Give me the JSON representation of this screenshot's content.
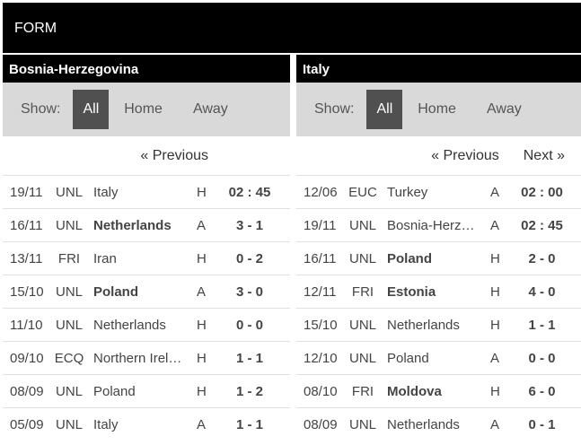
{
  "header": {
    "title": "FORM"
  },
  "filter": {
    "show_label": "Show:",
    "all": "All",
    "home": "Home",
    "away": "Away"
  },
  "left": {
    "team": "Bosnia-Herzegovina",
    "pager": {
      "previous": "« Previous"
    },
    "matches": [
      {
        "date": "19/11",
        "comp": "UNL",
        "opponent": "Italy",
        "bold": false,
        "ha": "H",
        "score": "02 : 45"
      },
      {
        "date": "16/11",
        "comp": "UNL",
        "opponent": "Netherlands",
        "bold": true,
        "ha": "A",
        "score": "3 - 1"
      },
      {
        "date": "13/11",
        "comp": "FRI",
        "opponent": "Iran",
        "bold": false,
        "ha": "H",
        "score": "0 - 2"
      },
      {
        "date": "15/10",
        "comp": "UNL",
        "opponent": "Poland",
        "bold": true,
        "ha": "A",
        "score": "3 - 0"
      },
      {
        "date": "11/10",
        "comp": "UNL",
        "opponent": "Netherlands",
        "bold": false,
        "ha": "H",
        "score": "0 - 0"
      },
      {
        "date": "09/10",
        "comp": "ECQ",
        "opponent": "Northern Irel…",
        "bold": false,
        "ha": "H",
        "score": "1 - 1"
      },
      {
        "date": "08/09",
        "comp": "UNL",
        "opponent": "Poland",
        "bold": false,
        "ha": "H",
        "score": "1 - 2"
      },
      {
        "date": "05/09",
        "comp": "UNL",
        "opponent": "Italy",
        "bold": false,
        "ha": "A",
        "score": "1 - 1"
      }
    ]
  },
  "right": {
    "team": "Italy",
    "pager": {
      "previous": "« Previous",
      "next": "Next »"
    },
    "matches": [
      {
        "date": "12/06",
        "comp": "EUC",
        "opponent": "Turkey",
        "bold": false,
        "ha": "A",
        "score": "02 : 00"
      },
      {
        "date": "19/11",
        "comp": "UNL",
        "opponent": "Bosnia-Herz…",
        "bold": false,
        "ha": "A",
        "score": "02 : 45"
      },
      {
        "date": "16/11",
        "comp": "UNL",
        "opponent": "Poland",
        "bold": true,
        "ha": "H",
        "score": "2 - 0"
      },
      {
        "date": "12/11",
        "comp": "FRI",
        "opponent": "Estonia",
        "bold": true,
        "ha": "H",
        "score": "4 - 0"
      },
      {
        "date": "15/10",
        "comp": "UNL",
        "opponent": "Netherlands",
        "bold": false,
        "ha": "H",
        "score": "1 - 1"
      },
      {
        "date": "12/10",
        "comp": "UNL",
        "opponent": "Poland",
        "bold": false,
        "ha": "A",
        "score": "0 - 0"
      },
      {
        "date": "08/10",
        "comp": "FRI",
        "opponent": "Moldova",
        "bold": true,
        "ha": "H",
        "score": "6 - 0"
      },
      {
        "date": "08/09",
        "comp": "UNL",
        "opponent": "Netherlands",
        "bold": false,
        "ha": "A",
        "score": "0 - 1"
      }
    ]
  }
}
